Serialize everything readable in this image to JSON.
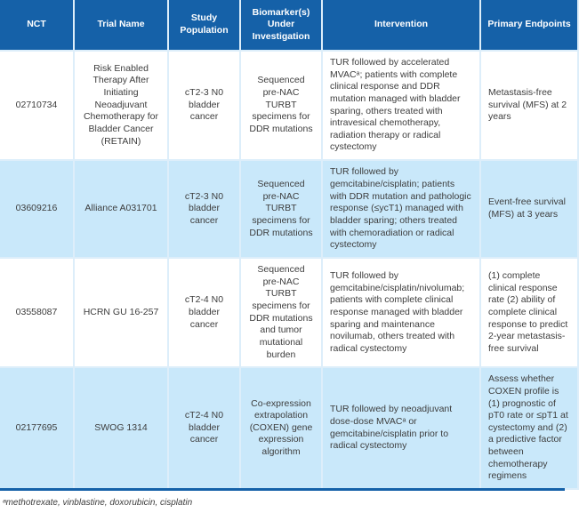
{
  "table": {
    "headers": [
      "NCT",
      "Trial Name",
      "Study Population",
      "Biomarker(s) Under Investigation",
      "Intervention",
      "Primary Endpoints"
    ],
    "rows": [
      {
        "nct": "02710734",
        "trial_name": "Risk Enabled Therapy After Initiating Neoadjuvant Chemotherapy for Bladder Cancer (RETAIN)",
        "study_population": "cT2-3 N0 bladder cancer",
        "biomarker": "Sequenced pre-NAC TURBT specimens for DDR mutations",
        "intervention": "TUR followed by accelerated MVACᵃ; patients with complete clinical response and DDR mutation managed with bladder sparing, others treated with intravesical chemotherapy, radiation therapy or radical cystectomy",
        "primary_endpoints": "Metastasis-free survival (MFS) at 2 years"
      },
      {
        "nct": "03609216",
        "trial_name": "Alliance A031701",
        "study_population": "cT2-3 N0 bladder cancer",
        "biomarker": "Sequenced pre-NAC TURBT specimens for DDR mutations",
        "intervention": "TUR followed by gemcitabine/cisplatin; patients with DDR mutation and pathologic response (≤ycT1) managed with bladder sparing; others treated with chemoradiation or radical cystectomy",
        "primary_endpoints": "Event-free survival (MFS) at 3 years"
      },
      {
        "nct": "03558087",
        "trial_name": "HCRN GU 16-257",
        "study_population": "cT2-4 N0 bladder cancer",
        "biomarker": "Sequenced pre-NAC TURBT specimens for DDR mutations and tumor mutational burden",
        "intervention": "TUR followed by gemcitabine/cisplatin/nivolumab; patients with complete clinical response managed with bladder sparing and maintenance novilumab, others treated with radical cystectomy",
        "primary_endpoints": "(1) complete clinical response rate (2) ability of complete clinical response to predict 2-year metastasis-free survival"
      },
      {
        "nct": "02177695",
        "trial_name": "SWOG 1314",
        "study_population": "cT2-4 N0 bladder cancer",
        "biomarker": "Co-expression extrapolation (COXEN) gene expression algorithm",
        "intervention": "TUR followed by neoadjuvant dose-dose MVACᵃ or gemcitabine/cisplatin prior to radical cystectomy",
        "primary_endpoints": "Assess whether COXEN profile is (1) prognostic of pT0 rate or ≤pT1 at cystectomy and (2) a predictive factor between chemotherapy regimens"
      }
    ],
    "footnote": "ᵃmethotrexate, vinblastine, doxorubicin, cisplatin"
  },
  "colors": {
    "header_bg": "#1561a8",
    "row_alt_bg": "#c9e8fa",
    "grid_line": "#ddeefa",
    "bottom_rule": "#1561a8",
    "text": "#3d3d3d",
    "header_text": "#ffffff"
  }
}
